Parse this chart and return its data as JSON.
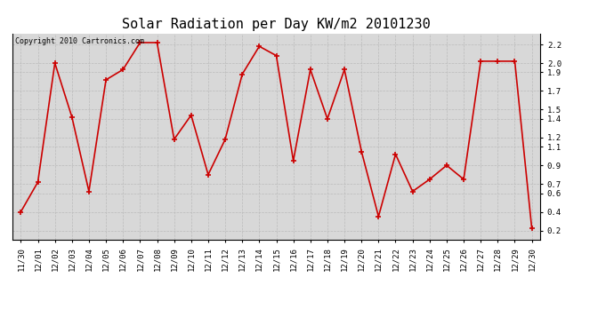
{
  "title": "Solar Radiation per Day KW/m2 20101230",
  "copyright_text": "Copyright 2010 Cartronics.com",
  "labels": [
    "11/30",
    "12/01",
    "12/02",
    "12/03",
    "12/04",
    "12/05",
    "12/06",
    "12/07",
    "12/08",
    "12/09",
    "12/10",
    "12/11",
    "12/12",
    "12/13",
    "12/14",
    "12/15",
    "12/16",
    "12/17",
    "12/18",
    "12/19",
    "12/20",
    "12/21",
    "12/22",
    "12/23",
    "12/24",
    "12/25",
    "12/26",
    "12/27",
    "12/28",
    "12/29",
    "12/30"
  ],
  "values": [
    0.4,
    0.72,
    2.0,
    1.42,
    0.62,
    1.82,
    1.93,
    2.22,
    2.22,
    1.18,
    1.44,
    0.8,
    1.18,
    1.88,
    2.18,
    2.08,
    0.95,
    1.93,
    1.4,
    1.93,
    1.05,
    0.35,
    1.02,
    0.62,
    0.75,
    0.9,
    0.75,
    2.02,
    2.02,
    2.02,
    0.22
  ],
  "line_color": "#cc0000",
  "marker_color": "#cc0000",
  "bg_color": "#ffffff",
  "plot_bg_color": "#d8d8d8",
  "grid_color": "#bbbbbb",
  "ylim_min": 0.1,
  "ylim_max": 2.32,
  "yticks": [
    0.2,
    0.4,
    0.6,
    0.7,
    0.9,
    1.1,
    1.2,
    1.4,
    1.5,
    1.7,
    1.9,
    2.0,
    2.2
  ],
  "title_fontsize": 11,
  "copyright_fontsize": 6,
  "tick_fontsize": 6.5
}
